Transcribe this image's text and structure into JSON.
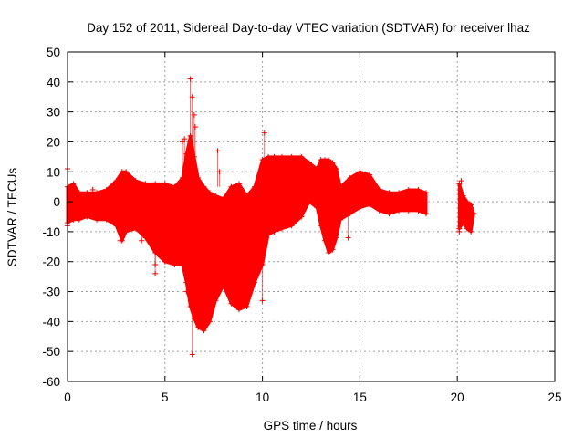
{
  "chart_data": {
    "type": "scatter",
    "title": "Day 152 of 2011, Sidereal Day-to-day VTEC variation (SDTVAR) for receiver lhaz",
    "xlabel": "GPS time / hours",
    "ylabel": "SDTVAR / TECUs",
    "xlim": [
      0,
      25
    ],
    "ylim": [
      -60,
      50
    ],
    "x_ticks": [
      0,
      5,
      10,
      15,
      20,
      25
    ],
    "y_ticks": [
      -60,
      -50,
      -40,
      -30,
      -20,
      -10,
      0,
      10,
      20,
      30,
      40,
      50
    ],
    "grid": true,
    "marker": "+",
    "series_color": "#ff0000",
    "envelope": {
      "x": [
        0,
        0.3,
        0.6,
        1.0,
        1.5,
        2.0,
        2.5,
        2.8,
        3.0,
        3.5,
        4.0,
        4.5,
        5.0,
        5.5,
        5.9,
        6.1,
        6.3,
        6.5,
        6.7,
        7.0,
        7.3,
        7.6,
        8.0,
        8.4,
        8.8,
        9.2,
        9.6,
        10.0,
        10.3,
        10.6,
        11.0,
        11.5,
        12.0,
        12.4,
        12.8,
        13.0,
        13.2,
        13.4,
        13.6,
        13.8,
        14.0,
        14.5,
        15.0,
        15.5,
        16.0,
        16.5,
        17.0,
        17.5,
        18.0,
        18.4
      ],
      "upper": [
        5,
        6,
        3,
        3,
        3,
        4,
        7,
        10,
        10,
        7,
        6,
        6,
        6,
        5,
        8,
        16,
        22,
        15,
        8,
        5,
        3,
        2,
        1,
        5,
        6,
        2,
        5,
        14,
        15,
        15,
        15,
        15,
        15,
        13,
        11,
        14,
        14,
        14,
        13,
        11,
        5,
        8,
        10,
        9,
        4,
        3,
        3,
        4,
        4,
        3
      ],
      "lower": [
        -7,
        -6,
        -6,
        -5,
        -6,
        -6,
        -8,
        -13,
        -10,
        -9,
        -12,
        -17,
        -20,
        -21,
        -21,
        -27,
        -35,
        -39,
        -42,
        -43,
        -40,
        -33,
        -28,
        -34,
        -36,
        -35,
        -27,
        -21,
        -11,
        -10,
        -9,
        -8,
        -5,
        0,
        -2,
        -8,
        -13,
        -17,
        -16,
        -12,
        -6,
        -4,
        -2,
        -1,
        -3,
        -4,
        -3,
        -3,
        -3,
        -4
      ]
    },
    "late_segment": {
      "x": [
        20.1,
        20.3,
        20.5,
        20.7,
        20.85
      ],
      "upper": [
        6,
        2,
        0,
        -1,
        -4
      ],
      "lower": [
        -9,
        -7,
        -9,
        -10,
        -4
      ]
    },
    "outliers": [
      {
        "x": 0.0,
        "y": 11
      },
      {
        "x": 0.0,
        "y": -8
      },
      {
        "x": 1.3,
        "y": 4
      },
      {
        "x": 2.7,
        "y": -13
      },
      {
        "x": 3.8,
        "y": -13
      },
      {
        "x": 4.5,
        "y": -24
      },
      {
        "x": 4.5,
        "y": -21
      },
      {
        "x": 6.1,
        "y": -30
      },
      {
        "x": 6.4,
        "y": -29
      },
      {
        "x": 5.9,
        "y": 20
      },
      {
        "x": 6.0,
        "y": 21
      },
      {
        "x": 6.3,
        "y": 41
      },
      {
        "x": 6.4,
        "y": 35
      },
      {
        "x": 6.5,
        "y": 29
      },
      {
        "x": 6.55,
        "y": 25
      },
      {
        "x": 7.7,
        "y": 17
      },
      {
        "x": 7.8,
        "y": 10
      },
      {
        "x": 6.4,
        "y": -51
      },
      {
        "x": 10.1,
        "y": 23
      },
      {
        "x": 10.0,
        "y": -33
      },
      {
        "x": 14.4,
        "y": -12
      },
      {
        "x": 20.1,
        "y": -10
      },
      {
        "x": 20.2,
        "y": 7
      }
    ]
  }
}
